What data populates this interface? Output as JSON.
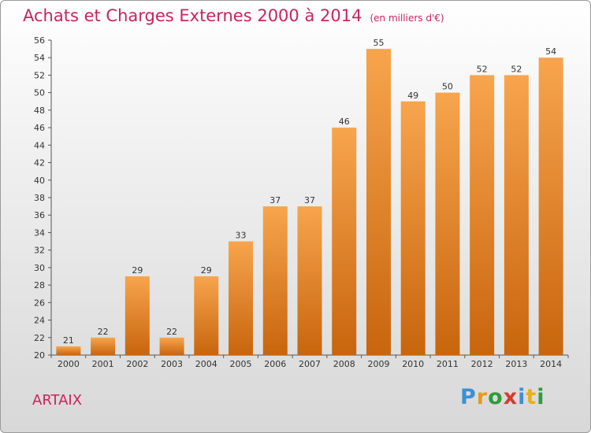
{
  "header": {
    "title": "Achats et Charges Externes 2000 à 2014",
    "unit": "(en milliers d'€)"
  },
  "footer": {
    "town": "ARTAIX",
    "logo": [
      "P",
      "r",
      "o",
      "x",
      "i",
      "t",
      "i"
    ]
  },
  "colors": {
    "bar_top": "#f7a54e",
    "bar_bottom": "#c8650d",
    "title": "#c8245e"
  },
  "chart_data": {
    "type": "bar",
    "title": "Achats et Charges Externes 2000 à 2014",
    "subtitle": "(en milliers d'€)",
    "categories": [
      "2000",
      "2001",
      "2002",
      "2003",
      "2004",
      "2005",
      "2006",
      "2007",
      "2008",
      "2009",
      "2010",
      "2011",
      "2012",
      "2013",
      "2014"
    ],
    "values": [
      21,
      22,
      29,
      22,
      29,
      33,
      37,
      37,
      46,
      55,
      49,
      50,
      52,
      52,
      54
    ],
    "ylim": [
      20,
      56
    ],
    "yticks": [
      20,
      22,
      24,
      26,
      28,
      30,
      32,
      34,
      36,
      38,
      40,
      42,
      44,
      46,
      48,
      50,
      52,
      54,
      56
    ],
    "xlabel": "",
    "ylabel": "",
    "grid": false,
    "data_labels": true
  }
}
